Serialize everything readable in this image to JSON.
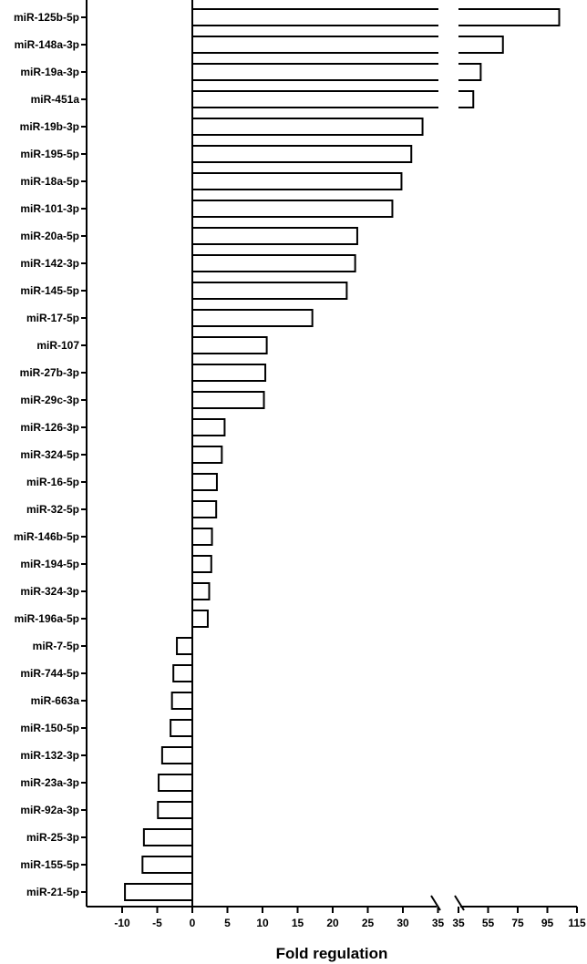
{
  "chart_data": {
    "type": "bar",
    "orientation": "horizontal",
    "xlabel": "Fold regulation",
    "axis_break": {
      "from": 35,
      "to": 35
    },
    "x_ticks_left": [
      -10,
      -5,
      0,
      5,
      10,
      15,
      20,
      25,
      30,
      35
    ],
    "x_ticks_right": [
      35,
      55,
      75,
      95,
      115
    ],
    "xlim_left": [
      -15,
      35
    ],
    "xlim_right": [
      35,
      115
    ],
    "categories": [
      "miR-125b-5p",
      "miR-148a-3p",
      "miR-19a-3p",
      "miR-451a",
      "miR-19b-3p",
      "miR-195-5p",
      "miR-18a-5p",
      "miR-101-3p",
      "miR-20a-5p",
      "miR-142-3p",
      "miR-145-5p",
      "miR-17-5p",
      "miR-107",
      "miR-27b-3p",
      "miR-29c-3p",
      "miR-126-3p",
      "miR-324-5p",
      "miR-16-5p",
      "miR-32-5p",
      "miR-146b-5p",
      "miR-194-5p",
      "miR-324-3p",
      "miR-196a-5p",
      "miR-7-5p",
      "miR-744-5p",
      "miR-663a",
      "miR-150-5p",
      "miR-132-3p",
      "miR-23a-3p",
      "miR-92a-3p",
      "miR-25-3p",
      "miR-155-5p",
      "miR-21-5p"
    ],
    "values": [
      103,
      65,
      50,
      45,
      32.8,
      31.2,
      29.8,
      28.5,
      23.5,
      23.2,
      22,
      17.1,
      10.6,
      10.4,
      10.2,
      4.6,
      4.2,
      3.5,
      3.4,
      2.8,
      2.7,
      2.4,
      2.2,
      -2.2,
      -2.7,
      -2.9,
      -3.1,
      -4.3,
      -4.8,
      -4.9,
      -6.9,
      -7.1,
      -9.6
    ],
    "colors": {
      "bar_fill": "#ffffff",
      "bar_stroke": "#000000",
      "axis": "#000000"
    }
  }
}
